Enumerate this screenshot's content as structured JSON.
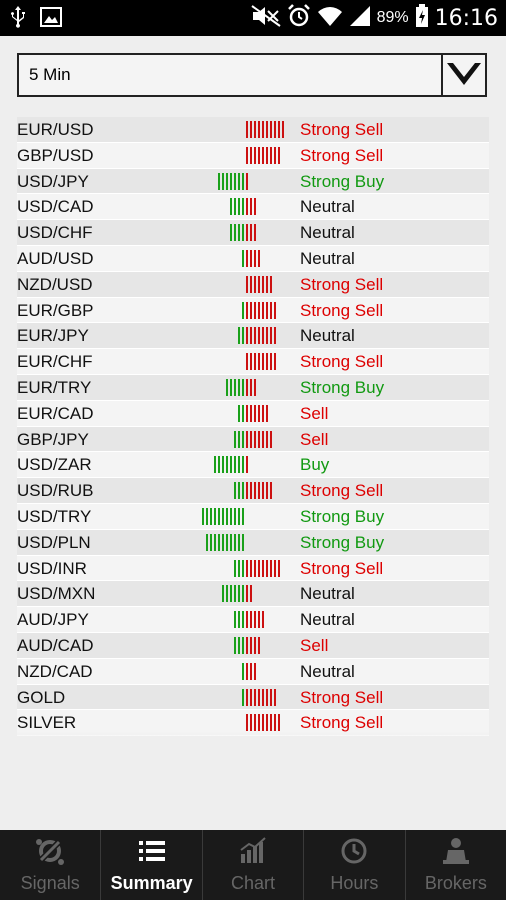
{
  "statusbar": {
    "battery": "89%",
    "time": "16:16"
  },
  "dropdown": {
    "value": "5 Min"
  },
  "colors": {
    "sell": "#dd0000",
    "buy": "#119911",
    "neutral": "#111111",
    "bar_green": "#1aa01a",
    "bar_red": "#cc1111"
  },
  "rows": [
    {
      "symbol": "EUR/USD",
      "signal": "Strong Sell",
      "tone": "sell",
      "green": 0,
      "red": 10
    },
    {
      "symbol": "GBP/USD",
      "signal": "Strong Sell",
      "tone": "sell",
      "green": 0,
      "red": 9
    },
    {
      "symbol": "USD/JPY",
      "signal": "Strong Buy",
      "tone": "buy",
      "green": 7,
      "red": 1
    },
    {
      "symbol": "USD/CAD",
      "signal": "Neutral",
      "tone": "neutral",
      "green": 4,
      "red": 3
    },
    {
      "symbol": "USD/CHF",
      "signal": "Neutral",
      "tone": "neutral",
      "green": 4,
      "red": 3
    },
    {
      "symbol": "AUD/USD",
      "signal": "Neutral",
      "tone": "neutral",
      "green": 1,
      "red": 4
    },
    {
      "symbol": "NZD/USD",
      "signal": "Strong Sell",
      "tone": "sell",
      "green": 0,
      "red": 7
    },
    {
      "symbol": "EUR/GBP",
      "signal": "Strong Sell",
      "tone": "sell",
      "green": 1,
      "red": 8
    },
    {
      "symbol": "EUR/JPY",
      "signal": "Neutral",
      "tone": "neutral",
      "green": 2,
      "red": 8
    },
    {
      "symbol": "EUR/CHF",
      "signal": "Strong Sell",
      "tone": "sell",
      "green": 0,
      "red": 8
    },
    {
      "symbol": "EUR/TRY",
      "signal": "Strong Buy",
      "tone": "buy",
      "green": 5,
      "red": 3
    },
    {
      "symbol": "EUR/CAD",
      "signal": "Sell",
      "tone": "sell",
      "green": 2,
      "red": 6
    },
    {
      "symbol": "GBP/JPY",
      "signal": "Sell",
      "tone": "sell",
      "green": 3,
      "red": 7
    },
    {
      "symbol": "USD/ZAR",
      "signal": "Buy",
      "tone": "buy",
      "green": 8,
      "red": 1
    },
    {
      "symbol": "USD/RUB",
      "signal": "Strong Sell",
      "tone": "sell",
      "green": 3,
      "red": 7
    },
    {
      "symbol": "USD/TRY",
      "signal": "Strong Buy",
      "tone": "buy",
      "green": 11,
      "red": 0
    },
    {
      "symbol": "USD/PLN",
      "signal": "Strong Buy",
      "tone": "buy",
      "green": 10,
      "red": 0
    },
    {
      "symbol": "USD/INR",
      "signal": "Strong Sell",
      "tone": "sell",
      "green": 3,
      "red": 9
    },
    {
      "symbol": "USD/MXN",
      "signal": "Neutral",
      "tone": "neutral",
      "green": 6,
      "red": 2
    },
    {
      "symbol": "AUD/JPY",
      "signal": "Neutral",
      "tone": "neutral",
      "green": 3,
      "red": 5
    },
    {
      "symbol": "AUD/CAD",
      "signal": "Sell",
      "tone": "sell",
      "green": 3,
      "red": 4
    },
    {
      "symbol": "NZD/CAD",
      "signal": "Neutral",
      "tone": "neutral",
      "green": 1,
      "red": 3
    },
    {
      "symbol": "GOLD",
      "signal": "Strong Sell",
      "tone": "sell",
      "green": 1,
      "red": 8
    },
    {
      "symbol": "SILVER",
      "signal": "Strong Sell",
      "tone": "sell",
      "green": 0,
      "red": 9
    }
  ],
  "tabs": [
    {
      "label": "Signals",
      "icon": "signals-icon",
      "active": false
    },
    {
      "label": "Summary",
      "icon": "list-icon",
      "active": true
    },
    {
      "label": "Chart",
      "icon": "chart-icon",
      "active": false
    },
    {
      "label": "Hours",
      "icon": "clock-icon",
      "active": false
    },
    {
      "label": "Brokers",
      "icon": "broker-icon",
      "active": false
    }
  ]
}
